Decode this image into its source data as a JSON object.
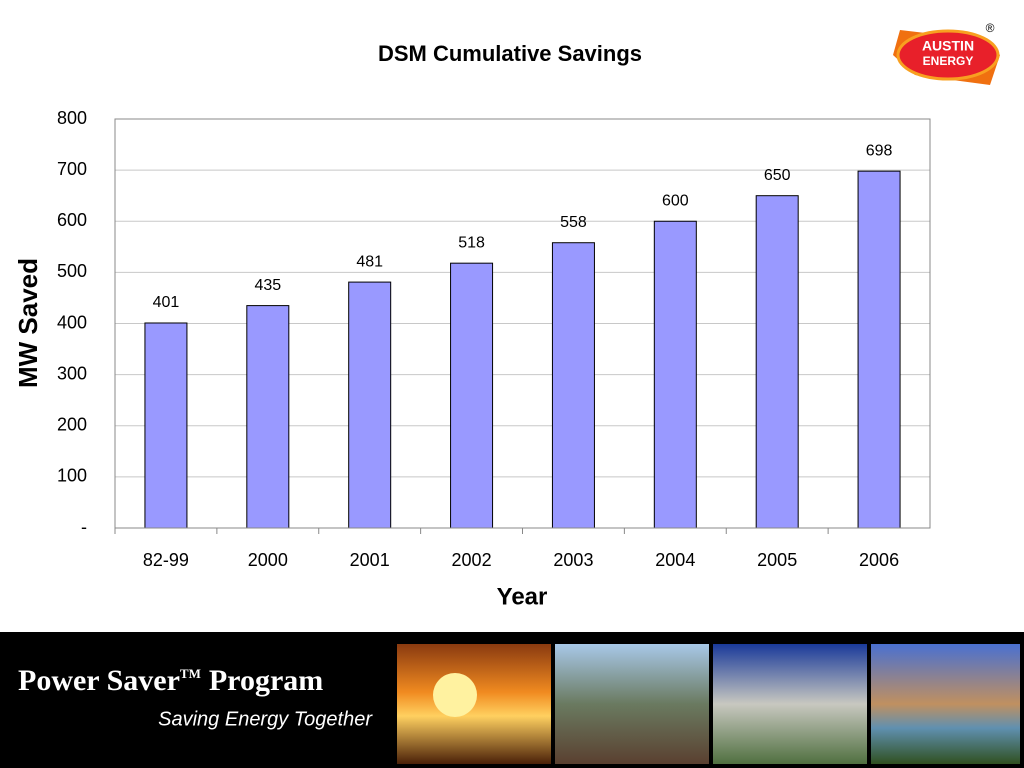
{
  "chart_data": {
    "type": "bar",
    "title": "DSM  Cumulative Savings",
    "x_label": "Year",
    "y_label": "MW Saved",
    "categories": [
      "82-99",
      "2000",
      "2001",
      "2002",
      "2003",
      "2004",
      "2005",
      "2006"
    ],
    "values": [
      401,
      435,
      481,
      518,
      558,
      600,
      650,
      698
    ],
    "color": "#9999ff",
    "ylim": [
      0,
      800
    ],
    "yticks": [
      {
        "value": 0,
        "label": "-"
      },
      100,
      200,
      300,
      400,
      500,
      600,
      700,
      800
    ],
    "grid": true
  },
  "logo": {
    "text_top": "AUSTIN",
    "text_bottom": "ENERGY",
    "mark": "®"
  },
  "footer": {
    "title": "Power Saver",
    "trademark": "TM",
    "title_end": "Program",
    "tagline": "Saving Energy Together"
  }
}
